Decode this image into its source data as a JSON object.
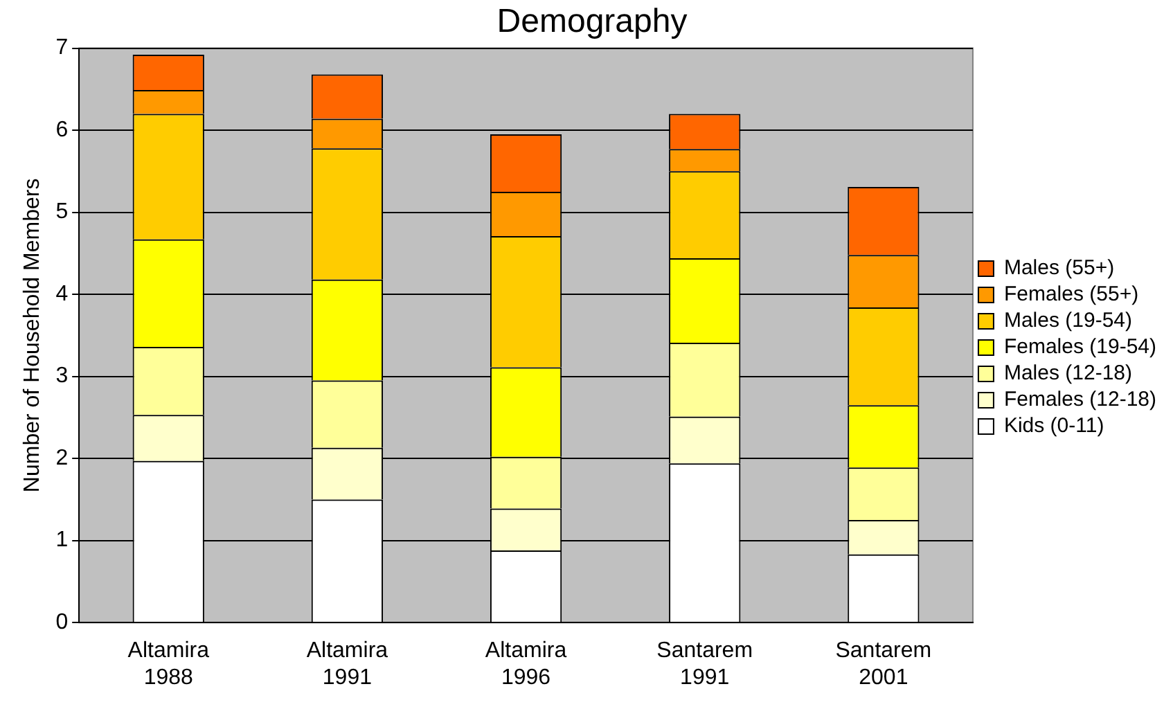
{
  "chart_data": {
    "type": "bar",
    "title": "Demography",
    "ylabel": "Number of Household Members",
    "categories": [
      "Altamira 1988",
      "Altamira 1991",
      "Altamira 1996",
      "Santarem 1991",
      "Santarem 2001"
    ],
    "stacked": true,
    "ylim": [
      0,
      7
    ],
    "yticks": [
      0,
      1,
      2,
      3,
      4,
      5,
      6,
      7
    ],
    "grid": "y",
    "legend": "right",
    "series": [
      {
        "name": "Kids (0-11)",
        "color": "#ffffff",
        "values": [
          1.97,
          1.5,
          0.88,
          1.94,
          0.83
        ]
      },
      {
        "name": "Females (12-18)",
        "color": "#ffffcc",
        "values": [
          0.56,
          0.63,
          0.51,
          0.57,
          0.42
        ]
      },
      {
        "name": "Males (12-18)",
        "color": "#ffff99",
        "values": [
          0.83,
          0.82,
          0.63,
          0.9,
          0.64
        ]
      },
      {
        "name": "Females (19-54)",
        "color": "#ffff00",
        "values": [
          1.31,
          1.23,
          1.09,
          1.03,
          0.76
        ]
      },
      {
        "name": "Males (19-54)",
        "color": "#ffcc00",
        "values": [
          1.53,
          1.6,
          1.6,
          1.06,
          1.19
        ]
      },
      {
        "name": "Females (55+)",
        "color": "#ff9900",
        "values": [
          0.29,
          0.36,
          0.54,
          0.27,
          0.64
        ]
      },
      {
        "name": "Males (55+)",
        "color": "#ff6600",
        "values": [
          0.43,
          0.54,
          0.7,
          0.43,
          0.83
        ]
      }
    ]
  }
}
